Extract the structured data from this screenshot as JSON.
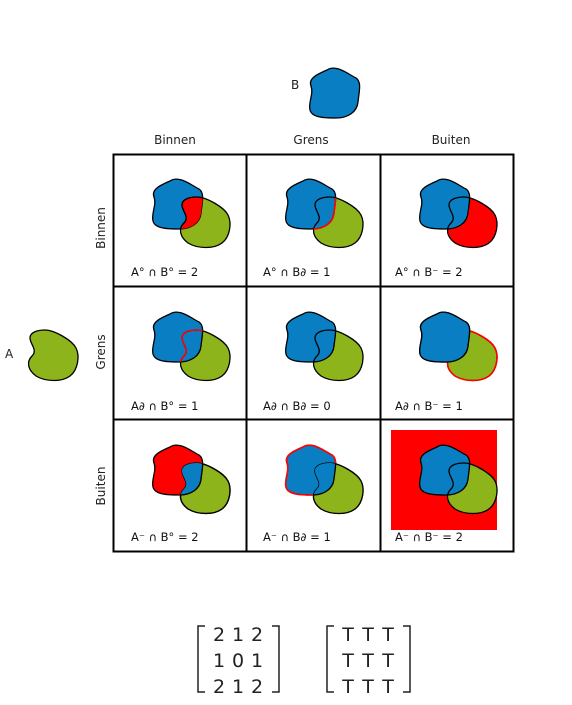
{
  "shapes": {
    "a_label": "A",
    "b_label": "B",
    "a_color": "#8db41b",
    "b_color": "#0a7ec2",
    "highlight_color": "#ff0000"
  },
  "columns": [
    "Binnen",
    "Grens",
    "Buiten"
  ],
  "rows": [
    "Binnen",
    "Grens",
    "Buiten"
  ],
  "cells": [
    {
      "caption": "A° ∩ B° = 2",
      "highlight": "AB_interior"
    },
    {
      "caption": "A° ∩ B∂ = 1",
      "highlight": "B_boundary_in_A"
    },
    {
      "caption": "A° ∩ B⁻ = 2",
      "highlight": "A_minus_B"
    },
    {
      "caption": "A∂ ∩ B° = 1",
      "highlight": "A_boundary_in_B"
    },
    {
      "caption": "A∂ ∩ B∂ = 0",
      "highlight": "none"
    },
    {
      "caption": "A∂ ∩ B⁻ = 1",
      "highlight": "A_boundary_out_B"
    },
    {
      "caption": "A⁻ ∩ B° = 2",
      "highlight": "B_minus_A"
    },
    {
      "caption": "A⁻ ∩ B∂ = 1",
      "highlight": "B_boundary_out_A"
    },
    {
      "caption": "A⁻ ∩ B⁻ = 2",
      "highlight": "exterior"
    }
  ],
  "matrices": {
    "numeric": [
      [
        "2",
        "1",
        "2"
      ],
      [
        "1",
        "0",
        "1"
      ],
      [
        "2",
        "1",
        "2"
      ]
    ],
    "boolean": [
      [
        "T",
        "T",
        "T"
      ],
      [
        "T",
        "T",
        "T"
      ],
      [
        "T",
        "T",
        "T"
      ]
    ]
  }
}
